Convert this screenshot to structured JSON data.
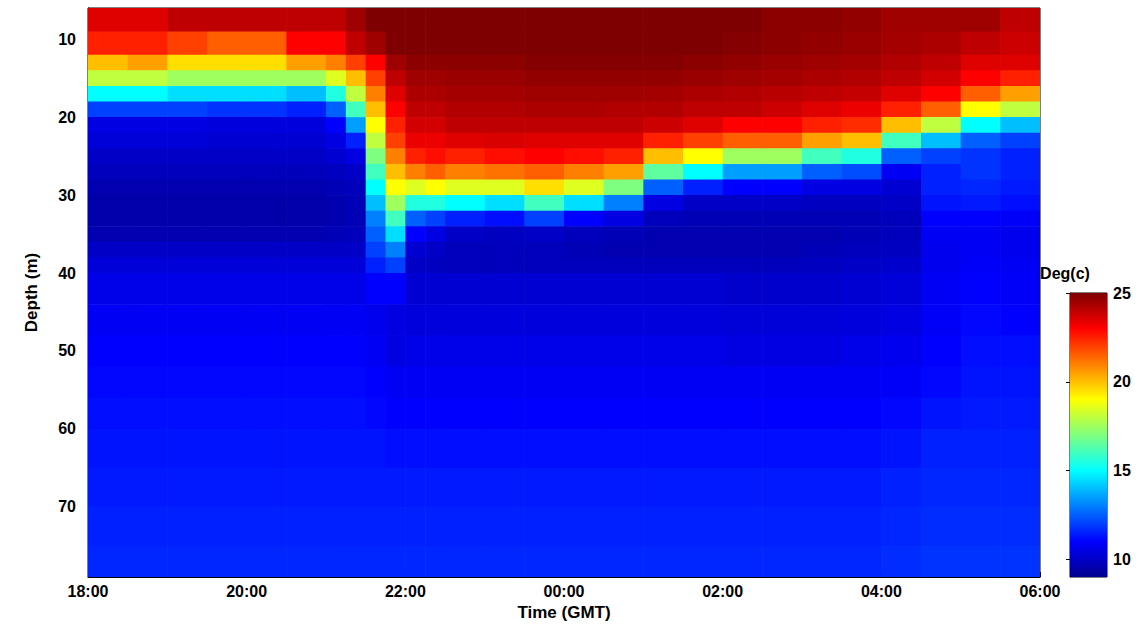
{
  "chart_data": {
    "type": "heatmap",
    "x_label": "Time (GMT)",
    "y_label": "Depth (m)",
    "xlim": [
      18,
      30
    ],
    "xticks": [
      {
        "value": 18,
        "label": "18:00"
      },
      {
        "value": 20,
        "label": "20:00"
      },
      {
        "value": 22,
        "label": "22:00"
      },
      {
        "value": 24,
        "label": "00:00"
      },
      {
        "value": 26,
        "label": "02:00"
      },
      {
        "value": 28,
        "label": "04:00"
      },
      {
        "value": 30,
        "label": "06:00"
      }
    ],
    "ylim": [
      6,
      79
    ],
    "yticks": [
      10,
      20,
      30,
      40,
      50,
      60,
      70
    ],
    "colorbar": {
      "label": "Deg(c)",
      "range": [
        9,
        25
      ],
      "ticks": [
        10,
        15,
        20,
        25
      ]
    },
    "time_edges": [
      18,
      18.5,
      19,
      19.5,
      20,
      20.5,
      21,
      21.25,
      21.5,
      21.75,
      22,
      22.25,
      22.5,
      23,
      23.5,
      24,
      24.5,
      25,
      25.5,
      26,
      26.5,
      27,
      27.5,
      28,
      28.5,
      29,
      29.5,
      30
    ],
    "depth_edges": [
      6,
      9,
      12,
      14,
      16,
      18,
      20,
      22,
      24,
      26,
      28,
      30,
      32,
      34,
      36,
      38,
      40,
      44,
      48,
      52,
      56,
      60,
      65,
      70,
      75,
      79
    ],
    "temperature": [
      [
        23.5,
        22.5,
        20,
        18,
        15,
        12,
        10.5,
        10.3,
        10,
        9.8,
        9.6,
        9.5,
        9.5,
        9.6,
        10,
        10.3,
        10.6,
        10.8,
        11,
        11.1,
        11.2,
        11.3,
        11.4,
        11.5,
        11.6
      ],
      [
        23.5,
        22.5,
        20.5,
        18,
        15,
        12,
        10.5,
        10.3,
        10,
        9.8,
        9.6,
        9.5,
        9.5,
        9.6,
        10,
        10.3,
        10.6,
        10.8,
        11,
        11.1,
        11.2,
        11.3,
        11.4,
        11.5,
        11.6
      ],
      [
        24,
        22,
        19.5,
        17.5,
        14.5,
        12,
        10.5,
        10.3,
        10,
        9.8,
        9.6,
        9.5,
        9.5,
        9.6,
        10,
        10.3,
        10.6,
        10.8,
        11,
        11.1,
        11.2,
        11.3,
        11.4,
        11.5,
        11.6
      ],
      [
        24,
        21.5,
        19.5,
        17.5,
        14.5,
        11.8,
        10.4,
        10.2,
        10,
        9.8,
        9.6,
        9.5,
        9.5,
        9.6,
        10,
        10.3,
        10.6,
        10.8,
        11,
        11.1,
        11.2,
        11.3,
        11.4,
        11.5,
        11.6
      ],
      [
        24,
        21.5,
        19.5,
        17.5,
        14.5,
        11.8,
        10.4,
        10.2,
        10,
        9.8,
        9.6,
        9.5,
        9.5,
        9.6,
        10,
        10.3,
        10.6,
        10.8,
        11,
        11.1,
        11.2,
        11.3,
        11.4,
        11.5,
        11.6
      ],
      [
        24,
        23,
        20.5,
        17.5,
        14,
        11.5,
        10.4,
        10.2,
        10,
        9.8,
        9.6,
        9.5,
        9.5,
        9.6,
        10,
        10.3,
        10.6,
        10.8,
        11,
        11.1,
        11.2,
        11.3,
        11.4,
        11.5,
        11.6
      ],
      [
        24,
        23,
        21,
        18.5,
        15.5,
        12.5,
        11,
        10.5,
        10.2,
        9.9,
        9.7,
        9.6,
        9.6,
        9.7,
        10,
        10.3,
        10.6,
        10.8,
        11,
        11.1,
        11.2,
        11.3,
        11.4,
        11.5,
        11.6
      ],
      [
        24.5,
        24,
        22,
        20,
        18,
        16,
        13.5,
        11.5,
        10.5,
        10,
        9.8,
        9.7,
        9.7,
        9.8,
        10,
        10.3,
        10.6,
        10.8,
        11,
        11.1,
        11.2,
        11.3,
        11.4,
        11.5,
        11.6
      ],
      [
        25,
        24.5,
        23,
        22,
        21,
        20,
        19,
        18,
        17,
        16,
        15,
        14,
        13,
        12.5,
        12,
        11.5,
        11,
        10.7,
        10.8,
        11,
        11.1,
        11.3,
        11.4,
        11.5,
        11.6
      ],
      [
        25,
        25,
        24.5,
        24,
        23.5,
        23,
        22.5,
        22,
        21,
        20,
        19,
        17.5,
        16,
        14.5,
        13,
        12,
        11,
        10.5,
        10.5,
        10.8,
        11,
        11.2,
        11.4,
        11.5,
        11.6
      ],
      [
        25,
        25,
        24.8,
        24.5,
        24.3,
        24,
        23.7,
        23.3,
        22.5,
        21,
        18.5,
        15.5,
        12.5,
        11,
        10.2,
        10,
        10.2,
        10.4,
        10.6,
        10.8,
        11,
        11.2,
        11.4,
        11.5,
        11.6
      ],
      [
        25,
        25,
        24.8,
        24.5,
        24.3,
        24,
        23.7,
        23.3,
        22.8,
        21.5,
        19,
        15.5,
        12,
        10.5,
        10,
        9.9,
        10.2,
        10.4,
        10.6,
        10.8,
        11,
        11.2,
        11.4,
        11.5,
        11.6
      ],
      [
        25,
        25,
        24.8,
        24.6,
        24.4,
        24.2,
        24,
        23.5,
        22.5,
        21,
        18.5,
        15,
        11.5,
        10,
        9.8,
        9.8,
        10.2,
        10.4,
        10.6,
        10.8,
        11,
        11.2,
        11.4,
        11.5,
        11.6
      ],
      [
        25,
        25,
        24.8,
        24.6,
        24.4,
        24.2,
        24,
        23.6,
        22.8,
        21.2,
        18.5,
        14.5,
        11.2,
        9.9,
        9.8,
        9.8,
        10.2,
        10.4,
        10.6,
        10.8,
        11,
        11.2,
        11.4,
        11.5,
        11.6
      ],
      [
        25,
        25,
        24.9,
        24.7,
        24.5,
        24.3,
        24,
        23.5,
        23,
        21.5,
        19.5,
        16,
        12,
        10,
        9.8,
        9.8,
        10.2,
        10.4,
        10.6,
        10.8,
        11,
        11.2,
        11.4,
        11.5,
        11.6
      ],
      [
        25,
        25,
        24.9,
        24.7,
        24.5,
        24.3,
        24,
        23.5,
        22.8,
        21,
        18.5,
        14.5,
        11,
        9.8,
        9.7,
        9.8,
        10.2,
        10.4,
        10.6,
        10.8,
        11,
        11.2,
        11.4,
        11.5,
        11.6
      ],
      [
        25,
        25,
        24.9,
        24.7,
        24.5,
        24.2,
        24,
        23.5,
        22.5,
        20.5,
        17,
        13,
        10.5,
        9.7,
        9.6,
        9.8,
        10.2,
        10.4,
        10.6,
        10.8,
        11,
        11.2,
        11.4,
        11.5,
        11.6
      ],
      [
        25,
        25,
        24.9,
        24.7,
        24.4,
        24.2,
        23.8,
        22.5,
        20,
        16.5,
        12.5,
        10.5,
        9.8,
        9.6,
        9.6,
        9.8,
        10.2,
        10.4,
        10.6,
        10.8,
        11,
        11.2,
        11.4,
        11.5,
        11.6
      ],
      [
        25,
        25,
        24.8,
        24.6,
        24.3,
        24,
        23.5,
        22,
        19,
        15,
        11.5,
        10,
        9.7,
        9.6,
        9.6,
        9.8,
        10.2,
        10.4,
        10.6,
        10.8,
        11,
        11.2,
        11.4,
        11.5,
        11.6
      ],
      [
        25,
        24.9,
        24.7,
        24.5,
        24.2,
        24,
        23,
        21.5,
        17.5,
        13.5,
        11,
        10,
        9.7,
        9.6,
        9.6,
        9.8,
        10.1,
        10.3,
        10.5,
        10.8,
        11,
        11.2,
        11.4,
        11.5,
        11.6
      ],
      [
        24.8,
        24.8,
        24.6,
        24.4,
        24.1,
        23.8,
        23,
        21.5,
        17.5,
        13.5,
        11,
        10,
        9.7,
        9.6,
        9.6,
        9.8,
        10.1,
        10.3,
        10.5,
        10.8,
        11,
        11.2,
        11.4,
        11.5,
        11.6
      ],
      [
        24.8,
        24.7,
        24.5,
        24.3,
        24,
        23.5,
        22.5,
        20.5,
        16,
        12.5,
        10.5,
        9.9,
        9.7,
        9.6,
        9.7,
        9.9,
        10.1,
        10.3,
        10.5,
        10.8,
        11,
        11.2,
        11.4,
        11.5,
        11.6
      ],
      [
        24.7,
        24.6,
        24.4,
        24.2,
        23.9,
        23.3,
        22.3,
        20,
        15.5,
        12.2,
        10.5,
        9.9,
        9.7,
        9.7,
        9.8,
        10,
        10.2,
        10.4,
        10.6,
        10.8,
        11,
        11.2,
        11.4,
        11.5,
        11.6
      ],
      [
        24.5,
        24.4,
        24.2,
        24,
        23.5,
        22.5,
        20,
        16,
        12.5,
        10.8,
        10.2,
        10,
        9.8,
        9.8,
        9.9,
        10.1,
        10.3,
        10.5,
        10.7,
        10.9,
        11.1,
        11.3,
        11.5,
        11.6,
        11.7
      ],
      [
        24.5,
        24.3,
        24,
        23.7,
        23,
        21.5,
        18,
        14,
        12,
        11.5,
        11.5,
        11.3,
        11,
        10.8,
        10.7,
        10.7,
        10.8,
        10.9,
        11,
        11.1,
        11.3,
        11.5,
        11.6,
        11.7,
        11.8
      ],
      [
        24.5,
        24,
        23.5,
        23,
        21.5,
        19,
        15,
        12.5,
        11.8,
        11.8,
        11.6,
        11.4,
        11,
        10.8,
        10.8,
        10.9,
        11,
        11.1,
        11.2,
        11.3,
        11.4,
        11.5,
        11.6,
        11.7,
        11.8
      ],
      [
        24,
        23.8,
        23.5,
        22.5,
        20.5,
        18,
        14,
        12,
        11.5,
        11.5,
        11.4,
        11.2,
        10.9,
        10.7,
        10.7,
        10.8,
        10.9,
        11,
        11.2,
        11.3,
        11.4,
        11.5,
        11.6,
        11.7,
        11.8
      ]
    ]
  }
}
